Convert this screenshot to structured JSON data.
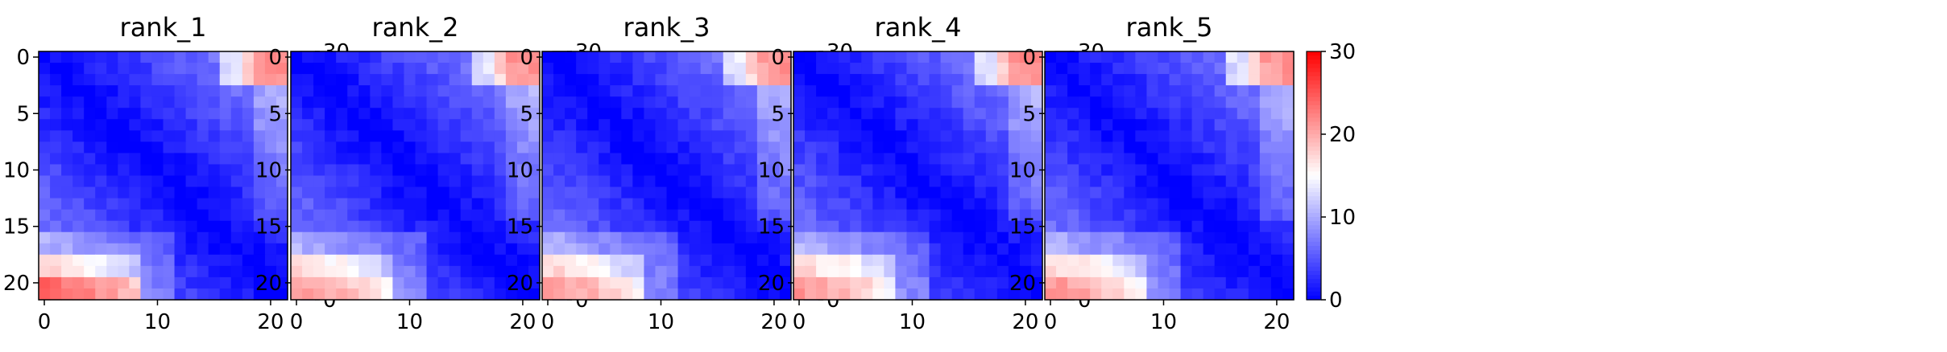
{
  "chart_data": {
    "type": "heatmap",
    "panels": [
      "rank_1",
      "rank_2",
      "rank_3",
      "rank_4",
      "rank_5"
    ],
    "matrix_size": 22,
    "x_ticks": [
      0,
      10,
      20
    ],
    "y_ticks": [
      0,
      5,
      10,
      15,
      20
    ],
    "colorbar": {
      "cmap": "bwr",
      "range": [
        0,
        30
      ],
      "ticks": [
        0,
        10,
        20,
        30
      ],
      "colors": [
        "#0000ff",
        "#ffffff",
        "#ff0000"
      ]
    },
    "structure": "matrix values increase with distance from the diagonal; bottom-left corner (rows 18-21, cols 0-8) is highest (~20-28), top-right corner moderately high (~15-22), diagonal near 0"
  }
}
